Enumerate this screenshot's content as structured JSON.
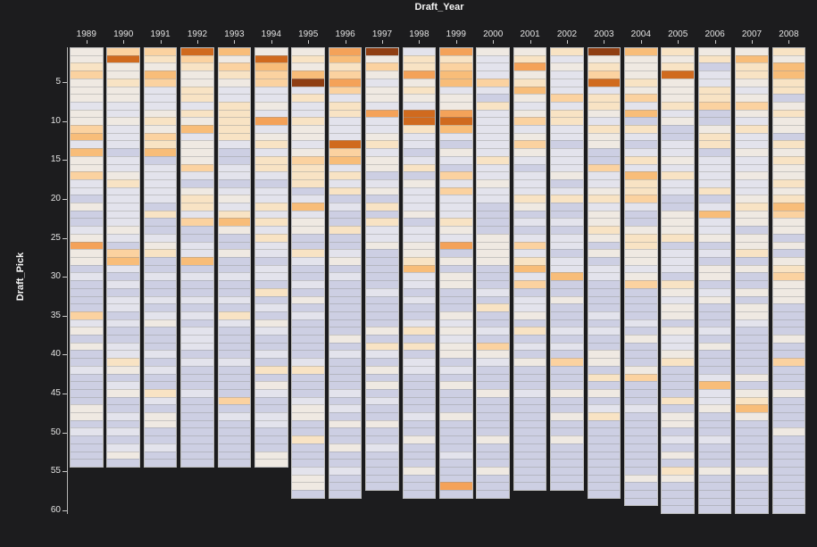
{
  "chart_data": {
    "type": "heatmap",
    "title": "Draft_Year",
    "xlabel": "Draft_Year",
    "ylabel": "Draft_Pick",
    "x_categories": [
      "1989",
      "1990",
      "1991",
      "1992",
      "1993",
      "1994",
      "1995",
      "1996",
      "1997",
      "1998",
      "1999",
      "2000",
      "2001",
      "2002",
      "2003",
      "2004",
      "2005",
      "2006",
      "2007",
      "2008"
    ],
    "y_ticks": [
      5,
      10,
      15,
      20,
      25,
      30,
      35,
      40,
      45,
      50,
      55,
      60
    ],
    "y_range": [
      1,
      60
    ],
    "grid": false,
    "legend_position": "none",
    "background_color": "#1c1c1e",
    "axis_text_color": "#e2e2e2",
    "title_text_color": "#f5f5f5",
    "scale_description": "diverging color scale: 9=dark brown-orange (highest) through cream (mid) to 1=light lavender (lowest)",
    "level_colors": [
      "#c3c5dc",
      "#cdcfe3",
      "#e3e3ec",
      "#efe9e2",
      "#f8e3c4",
      "#fbd2a0",
      "#f8bd79",
      "#f4a259",
      "#d06a1e",
      "#8f3e12"
    ],
    "columns": [
      {
        "year": "1989",
        "pick_levels": "334533323356263352213112373312111152313112111133121111"
      },
      {
        "year": "1990",
        "pick_levels": "583343322322212234222223215621212212112243123112121231"
      },
      {
        "year": "1991",
        "pick_levels": "543652223435461222221411234112112123111212114213311211"
      },
      {
        "year": "1992",
        "pick_levels": "854334424362333521344251122612112121222121112111111111"
      },
      {
        "year": "1993",
        "pick_levels": "635432244444211221232463113112112142111121111512111111"
      },
      {
        "year": "1994",
        "pick_levels": "386552232723424421224242422122141213211214132112211133"
      },
      {
        "year": "1995",
        "pick_levels": "3436924224332354441262331142112131211111241112331141112331"
      },
      {
        "year": "1996",
        "pick_levels": "7645752442228562424121141123121111111312111121213113112111"
      },
      {
        "year": "1997",
        "pick_levels": "935323327223423312314142231111121111314213131211311211111"
      },
      {
        "year": "1998",
        "pick_levels": "2447343288422124132223122334622121124141221111121131113111"
      },
      {
        "year": "1999",
        "pick_levels": "7456623378621321525222432713133111323233121311131111211171"
      },
      {
        "year": "2000",
        "pick_levels": "3222521422222242232211113333111214112153211131111131113111"
      },
      {
        "year": "2001",
        "pick_levels": "347346323523532122243121252462512231412131112111111111111"
      },
      {
        "year": "2002",
        "pick_levels": "423222524422122231241121221226113111212151113113113111111"
      },
      {
        "year": "2003",
        "pick_levels": "9345824432433115223423343131221111212113314131241111111111"
      },
      {
        "year": "2004",
        "pick_levels": "63334352614212426445211344332351111213111351112111111113111"
      },
      {
        "year": "2005",
        "pick_levels": "434833342311223242211333412221432331322341111413312131431111"
      },
      {
        "year": "2006",
        "pick_levels": "341224451134412222412622312133123111213111262231112111311111"
      },
      {
        "year": "2007",
        "pick_levels": "364432353242232232234331334131131332111111313463111111311111"
      },
      {
        "year": "2008",
        "pick_levels": "436644134331434334346533131345333111131151113111131111111111"
      }
    ]
  }
}
